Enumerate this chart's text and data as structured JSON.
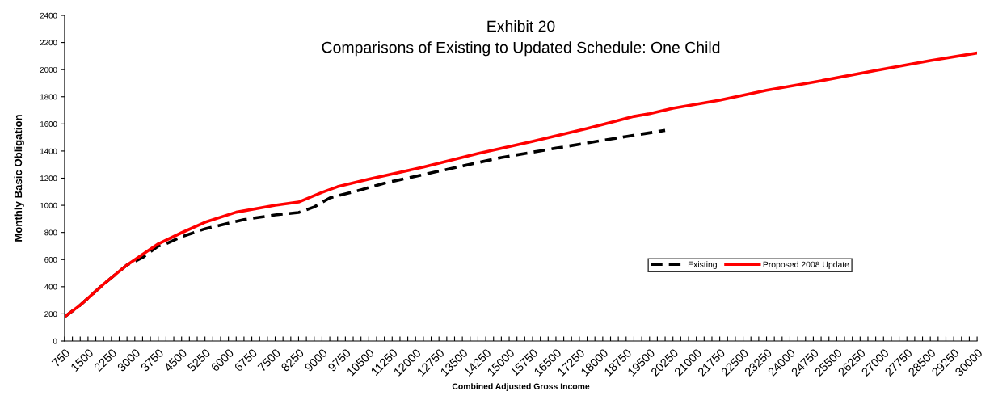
{
  "chart_data": {
    "type": "line",
    "title": "Exhibit 20",
    "subtitle": "Comparisons of Existing to Updated Schedule: One Child",
    "xlabel": "Combined Adjusted Gross Income",
    "ylabel": "Monthly Basic Obligation",
    "xlim": [
      750,
      30000
    ],
    "ylim": [
      0,
      2400
    ],
    "yticks": [
      0,
      200,
      400,
      600,
      800,
      1000,
      1200,
      1400,
      1600,
      1800,
      2000,
      2200,
      2400
    ],
    "xticks": [
      750,
      {
        "value": 1000,
        "label": null
      },
      {
        "value": 1250,
        "label": null
      },
      1500,
      {
        "value": 1750,
        "label": null
      },
      {
        "value": 2000,
        "label": null
      },
      2250,
      {
        "value": 2500,
        "label": null
      },
      {
        "value": 2750,
        "label": null
      },
      3000,
      {
        "value": 3250,
        "label": null
      },
      {
        "value": 3500,
        "label": null
      },
      3750,
      {
        "value": 4000,
        "label": null
      },
      {
        "value": 4250,
        "label": null
      },
      4500,
      {
        "value": 4750,
        "label": null
      },
      {
        "value": 5000,
        "label": null
      },
      5250,
      {
        "value": 5500,
        "label": null
      },
      {
        "value": 5750,
        "label": null
      },
      6000,
      {
        "value": 6250,
        "label": null
      },
      {
        "value": 6500,
        "label": null
      },
      6750,
      {
        "value": 7000,
        "label": null
      },
      {
        "value": 7250,
        "label": null
      },
      7500,
      {
        "value": 7750,
        "label": null
      },
      {
        "value": 8000,
        "label": null
      },
      8250,
      {
        "value": 8500,
        "label": null
      },
      {
        "value": 8750,
        "label": null
      },
      9000,
      {
        "value": 9250,
        "label": null
      },
      {
        "value": 9500,
        "label": null
      },
      9750,
      {
        "value": 10000,
        "label": null
      },
      {
        "value": 10250,
        "label": null
      },
      10500,
      {
        "value": 10750,
        "label": null
      },
      {
        "value": 11000,
        "label": null
      },
      11250,
      {
        "value": 11500,
        "label": null
      },
      {
        "value": 11750,
        "label": null
      },
      12000,
      {
        "value": 12250,
        "label": null
      },
      {
        "value": 12500,
        "label": null
      },
      12750,
      {
        "value": 13000,
        "label": null
      },
      {
        "value": 13250,
        "label": null
      },
      13500,
      {
        "value": 13750,
        "label": null
      },
      {
        "value": 14000,
        "label": null
      },
      14250,
      {
        "value": 14500,
        "label": null
      },
      {
        "value": 14750,
        "label": null
      },
      15000,
      {
        "value": 15250,
        "label": null
      },
      {
        "value": 15500,
        "label": null
      },
      15750,
      {
        "value": 16000,
        "label": null
      },
      {
        "value": 16250,
        "label": null
      },
      16500,
      {
        "value": 16750,
        "label": null
      },
      {
        "value": 17000,
        "label": null
      },
      17250,
      {
        "value": 17500,
        "label": null
      },
      {
        "value": 17750,
        "label": null
      },
      18000,
      {
        "value": 18250,
        "label": null
      },
      {
        "value": 18500,
        "label": null
      },
      18750,
      {
        "value": 19000,
        "label": null
      },
      {
        "value": 19250,
        "label": null
      },
      19500,
      {
        "value": 19750,
        "label": null
      },
      {
        "value": 20000,
        "label": null
      },
      20250,
      {
        "value": 20500,
        "label": null
      },
      {
        "value": 20750,
        "label": null
      },
      21000,
      {
        "value": 21250,
        "label": null
      },
      {
        "value": 21500,
        "label": null
      },
      21750,
      {
        "value": 22000,
        "label": null
      },
      {
        "value": 22250,
        "label": null
      },
      22500,
      {
        "value": 22750,
        "label": null
      },
      {
        "value": 23000,
        "label": null
      },
      23250,
      {
        "value": 23500,
        "label": null
      },
      {
        "value": 23750,
        "label": null
      },
      24000,
      {
        "value": 24250,
        "label": null
      },
      {
        "value": 24500,
        "label": null
      },
      24750,
      {
        "value": 25000,
        "label": null
      },
      {
        "value": 25250,
        "label": null
      },
      25500,
      {
        "value": 25750,
        "label": null
      },
      {
        "value": 26000,
        "label": null
      },
      26250,
      {
        "value": 26500,
        "label": null
      },
      {
        "value": 26750,
        "label": null
      },
      27000,
      {
        "value": 27250,
        "label": null
      },
      {
        "value": 27500,
        "label": null
      },
      27750,
      {
        "value": 28000,
        "label": null
      },
      {
        "value": 28250,
        "label": null
      },
      28500,
      {
        "value": 28750,
        "label": null
      },
      {
        "value": 29000,
        "label": null
      },
      29250,
      {
        "value": 29500,
        "label": null
      },
      {
        "value": 29750,
        "label": null
      },
      30000
    ],
    "grid": false,
    "legend": "right",
    "series": [
      {
        "name": "Existing",
        "color": "#000000",
        "line_style": "dashed",
        "x": [
          750,
          1250,
          2000,
          2750,
          3250,
          3750,
          4000,
          4500,
          5250,
          6500,
          7500,
          8250,
          8750,
          9250,
          10250,
          11000,
          12750,
          14750,
          16500,
          18750,
          20000
        ],
        "values": [
          178,
          264,
          419,
          560,
          615,
          700,
          716,
          768,
          827,
          895,
          929,
          947,
          988,
          1054,
          1114,
          1163,
          1252,
          1352,
          1421,
          1507,
          1552
        ]
      },
      {
        "name": "Proposed 2008 Update",
        "color": "#ff0000",
        "line_style": "solid",
        "x": [
          750,
          1250,
          2000,
          2750,
          3750,
          4500,
          5250,
          6250,
          7500,
          8250,
          9000,
          9500,
          10500,
          12250,
          14000,
          15750,
          17500,
          19000,
          19500,
          20250,
          21750,
          23250,
          25000,
          26750,
          28500,
          30000
        ],
        "values": [
          178,
          264,
          419,
          560,
          716,
          798,
          875,
          949,
          1000,
          1024,
          1095,
          1137,
          1193,
          1282,
          1382,
          1471,
          1566,
          1655,
          1675,
          1715,
          1775,
          1848,
          1918,
          1993,
          2066,
          2122
        ]
      }
    ]
  }
}
